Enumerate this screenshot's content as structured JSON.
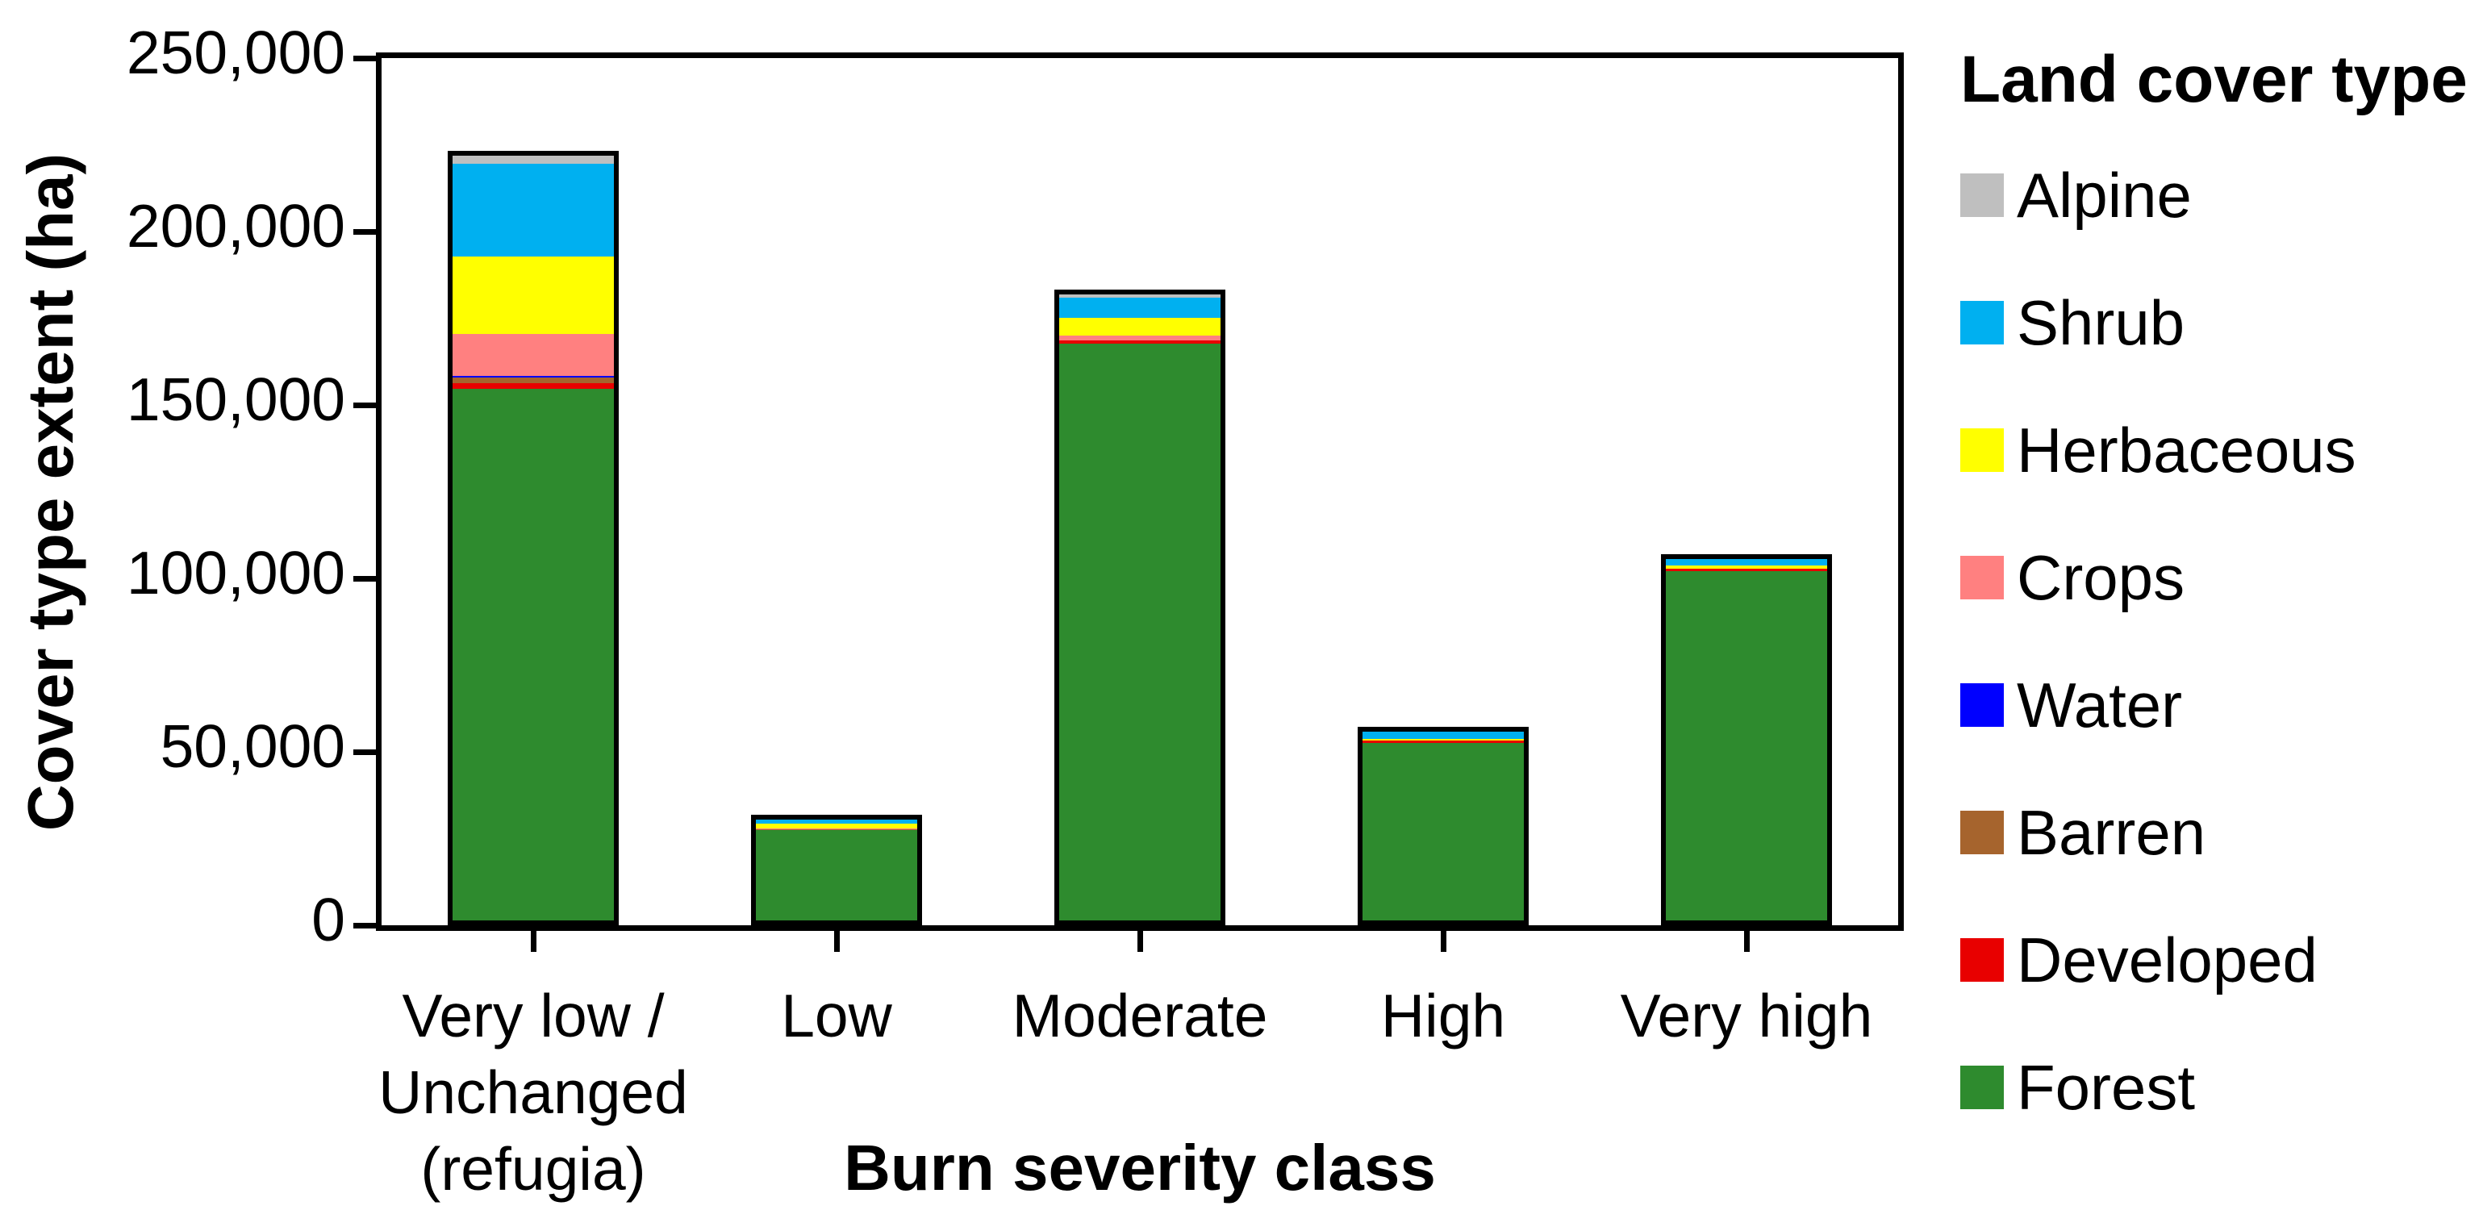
{
  "page": {
    "background_color": "#FFFFFF",
    "axis_color": "#000000"
  },
  "chart_data": {
    "type": "bar",
    "stacked": true,
    "title": "",
    "xlabel": "Burn severity class",
    "ylabel": "Cover type extent (ha)",
    "legend_title": "Land cover type",
    "legend_position": "right",
    "grid": false,
    "ylim": [
      0,
      250000
    ],
    "ytick_step": 50000,
    "ytick_labels": [
      "0",
      "50,000",
      "100,000",
      "150,000",
      "200,000",
      "250,000"
    ],
    "categories": [
      "Very low /\nUnchanged\n(refugia)",
      "Low",
      "Moderate",
      "High",
      "Very high"
    ],
    "bar_totals": [
      223200,
      31900,
      183200,
      57300,
      106900
    ],
    "series": [
      {
        "name": "Forest",
        "color": "#2E8B2E",
        "values": [
          155100,
          28500,
          168900,
          53800,
          103500
        ]
      },
      {
        "name": "Developed",
        "color": "#E80000",
        "values": [
          1800,
          0,
          1000,
          600,
          600
        ]
      },
      {
        "name": "Barren",
        "color": "#A6642D",
        "values": [
          1500,
          200,
          0,
          0,
          0
        ]
      },
      {
        "name": "Water",
        "color": "#0000FF",
        "values": [
          500,
          0,
          0,
          0,
          0
        ]
      },
      {
        "name": "Crops",
        "color": "#FF8080",
        "values": [
          12300,
          300,
          1200,
          0,
          0
        ]
      },
      {
        "name": "Herbaceous",
        "color": "#FFFF00",
        "values": [
          22600,
          1500,
          5300,
          700,
          900
        ]
      },
      {
        "name": "Shrub",
        "color": "#00B0F0",
        "values": [
          27100,
          1400,
          6000,
          2200,
          1900
        ]
      },
      {
        "name": "Alpine",
        "color": "#BFBFBF",
        "values": [
          2300,
          0,
          800,
          0,
          0
        ]
      }
    ],
    "legend_order_top_to_bottom": [
      "Alpine",
      "Shrub",
      "Herbaceous",
      "Crops",
      "Water",
      "Barren",
      "Developed",
      "Forest"
    ],
    "bar_outline_color": "#000000"
  }
}
